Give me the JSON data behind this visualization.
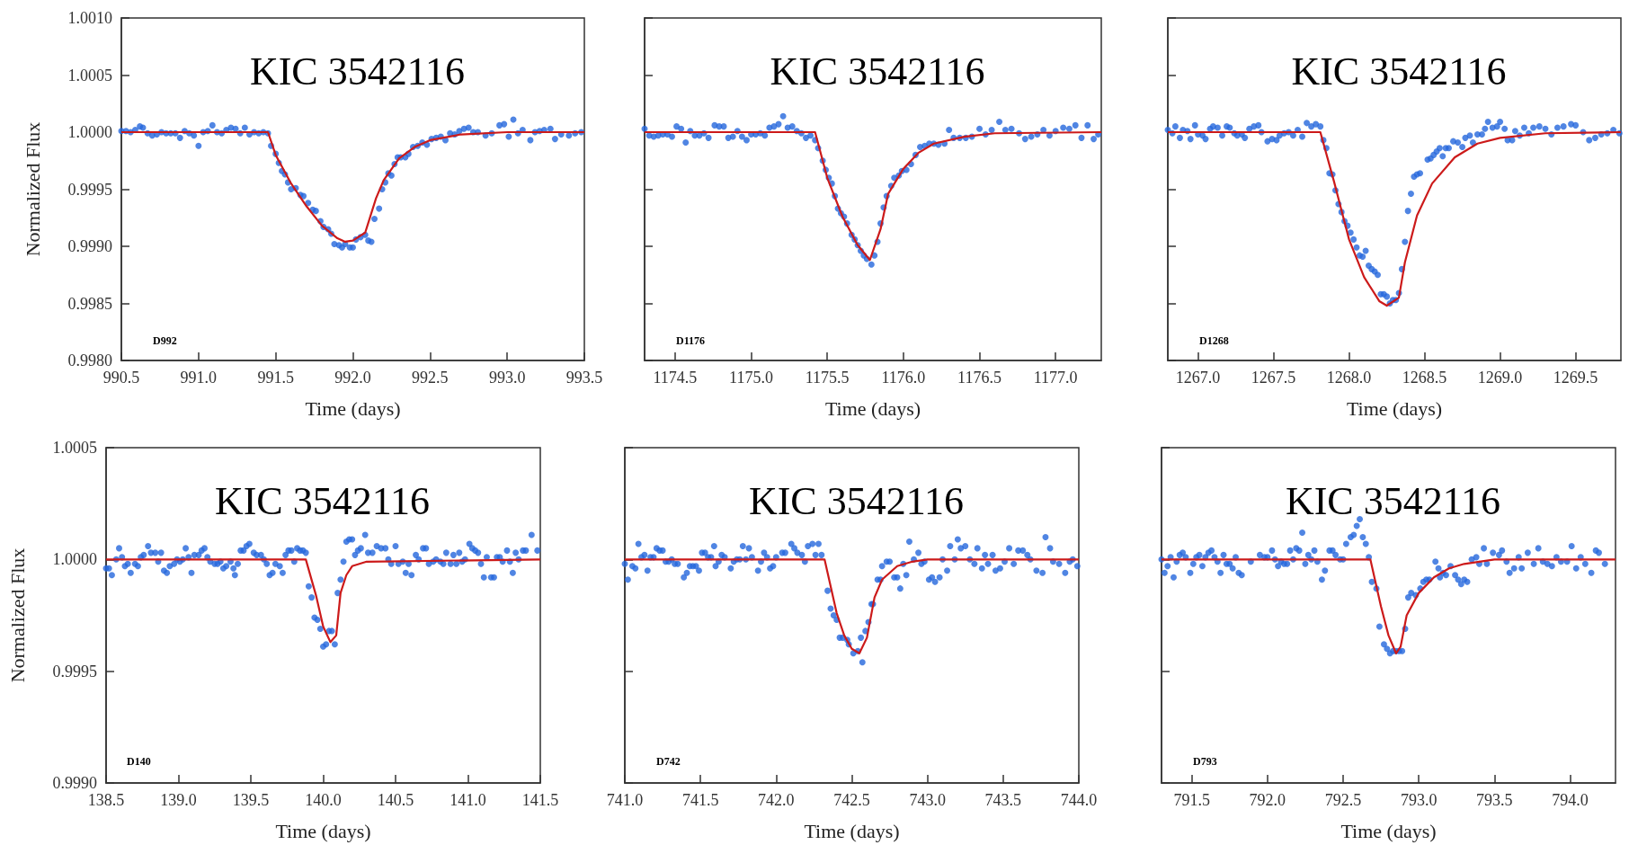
{
  "chart_data": [
    {
      "type": "scatter",
      "title": "KIC 3542116",
      "xlabel": "Time (days)",
      "ylabel": "Normalized Flux",
      "annotations": [
        "D992"
      ],
      "xlim": [
        990.5,
        993.5
      ],
      "xticks": [
        990.5,
        {
          "value": 991,
          "label": "991.0"
        },
        991.5,
        {
          "value": 992,
          "label": "992.0"
        },
        992.5,
        {
          "value": 993,
          "label": "993.0"
        },
        993.5
      ],
      "ylim": [
        0.998,
        1.001
      ],
      "yticks": [
        {
          "value": 0.998,
          "label": "0.9980"
        },
        0.9985,
        {
          "value": 0.999,
          "label": "0.9990"
        },
        0.9995,
        {
          "value": 1,
          "label": "1.0000"
        },
        1.0005,
        {
          "value": 1.001,
          "label": "1.0010"
        }
      ],
      "series": [
        {
          "type": "scatter",
          "marker": "circle",
          "color": "#2466dc",
          "x": [
            990.5,
            990.53,
            990.56,
            990.59,
            990.62,
            990.64,
            990.67,
            990.7,
            990.73,
            990.76,
            990.79,
            990.82,
            990.85,
            990.88,
            990.91,
            990.94,
            990.97,
            991.0,
            991.03,
            991.06,
            991.09,
            991.12,
            991.15,
            991.18,
            991.21,
            991.24,
            991.27,
            991.3,
            991.33,
            991.36,
            991.39,
            991.42,
            991.45,
            991.47,
            991.5,
            991.52,
            991.54,
            991.56,
            991.58,
            991.6,
            991.63,
            991.66,
            991.68,
            991.71,
            991.74,
            991.76,
            991.79,
            991.81,
            991.84,
            991.86,
            991.88,
            991.91,
            991.93,
            991.95,
            991.98,
            992.0,
            992.02,
            992.05,
            992.08,
            992.1,
            992.12,
            992.14,
            992.17,
            992.19,
            992.21,
            992.23,
            992.25,
            992.27,
            992.29,
            992.31,
            992.34,
            992.36,
            992.39,
            992.42,
            992.45,
            992.48,
            992.51,
            992.54,
            992.57,
            992.6,
            992.63,
            992.66,
            992.69,
            992.72,
            992.75,
            992.78,
            992.81,
            992.86,
            992.9,
            992.95,
            992.98,
            993.01,
            993.04,
            993.07,
            993.1,
            993.15,
            993.18,
            993.21,
            993.24,
            993.28,
            993.31,
            993.35,
            993.4,
            993.44,
            993.48
          ],
          "values": [
            1.00001,
            1.00001,
            1.0,
            1.00002,
            1.00005,
            1.00004,
            0.99999,
            0.99997,
            0.99998,
            1.0,
            0.99999,
            0.99999,
            0.99999,
            0.99995,
            1.00001,
            0.99999,
            0.99997,
            0.99988,
            1.0,
            1.00001,
            1.00006,
            1.0,
            0.99999,
            1.00002,
            1.00004,
            1.00003,
            0.99999,
            1.00004,
            0.99998,
            1.0,
            0.99999,
            1.0,
            0.99999,
            0.99988,
            0.99981,
            0.99973,
            0.99966,
            0.99963,
            0.99956,
            0.9995,
            0.99951,
            0.99945,
            0.99944,
            0.99938,
            0.99932,
            0.99931,
            0.99922,
            0.99917,
            0.99915,
            0.99911,
            0.99902,
            0.99901,
            0.99899,
            0.99902,
            0.99899,
            0.99899,
            0.99906,
            0.99908,
            0.9991,
            0.99905,
            0.99904,
            0.99924,
            0.99933,
            0.9995,
            0.99956,
            0.99964,
            0.99962,
            0.99972,
            0.99978,
            0.99978,
            0.99978,
            0.99981,
            0.99987,
            0.99988,
            0.99991,
            0.99989,
            0.99994,
            0.99995,
            0.99996,
            0.99993,
            0.99999,
            0.99998,
            1.00001,
            1.00003,
            1.00004,
            1.0,
            1.0,
            0.99997,
            0.99999,
            1.00006,
            1.00007,
            0.99996,
            1.00011,
            0.99999,
            1.00002,
            0.99993,
            1.0,
            1.00001,
            1.00002,
            1.00003,
            0.99994,
            0.99998,
            0.99997,
            0.99999,
            1.0
          ]
        },
        {
          "type": "line",
          "marker": "none",
          "color": "#cc1a1a",
          "x": [
            990.5,
            991.45,
            991.5,
            991.6,
            991.7,
            991.8,
            991.9,
            991.95,
            992.0,
            992.08,
            992.15,
            992.2,
            992.3,
            992.4,
            992.5,
            992.7,
            993.0,
            993.5
          ],
          "values": [
            1.0,
            1.0,
            0.9998,
            0.99955,
            0.99935,
            0.99918,
            0.99907,
            0.99904,
            0.99905,
            0.99912,
            0.99942,
            0.99958,
            0.99977,
            0.99987,
            0.99993,
            0.99998,
            1.0,
            1.0
          ]
        }
      ]
    },
    {
      "type": "scatter",
      "title": "KIC 3542116",
      "xlabel": "Time (days)",
      "annotations": [
        "D1176"
      ],
      "tick_labels": "x",
      "xlim": [
        1174.3,
        1177.3
      ],
      "xticks": [
        1174.5,
        {
          "value": 1175,
          "label": "1175.0"
        },
        1175.5,
        {
          "value": 1176,
          "label": "1176.0"
        },
        1176.5,
        {
          "value": 1177,
          "label": "1177.0"
        }
      ],
      "ylim": [
        0.998,
        1.001
      ],
      "yticks": [
        0.998,
        0.9985,
        0.999,
        0.9995,
        1,
        1.0005,
        1.001
      ],
      "series": [
        {
          "type": "scatter",
          "marker": "circle",
          "color": "#2466dc",
          "x": [
            1174.3,
            1174.33,
            1174.36,
            1174.39,
            1174.42,
            1174.45,
            1174.48,
            1174.51,
            1174.54,
            1174.57,
            1174.6,
            1174.63,
            1174.66,
            1174.69,
            1174.72,
            1174.76,
            1174.79,
            1174.82,
            1174.85,
            1174.88,
            1174.91,
            1174.94,
            1174.97,
            1175.0,
            1175.03,
            1175.06,
            1175.09,
            1175.12,
            1175.15,
            1175.18,
            1175.21,
            1175.24,
            1175.27,
            1175.3,
            1175.33,
            1175.36,
            1175.39,
            1175.42,
            1175.44,
            1175.47,
            1175.49,
            1175.51,
            1175.53,
            1175.55,
            1175.57,
            1175.59,
            1175.61,
            1175.63,
            1175.66,
            1175.68,
            1175.7,
            1175.72,
            1175.74,
            1175.76,
            1175.79,
            1175.81,
            1175.83,
            1175.85,
            1175.87,
            1175.89,
            1175.92,
            1175.94,
            1175.97,
            1175.99,
            1176.02,
            1176.05,
            1176.08,
            1176.11,
            1176.14,
            1176.17,
            1176.2,
            1176.23,
            1176.27,
            1176.3,
            1176.33,
            1176.37,
            1176.41,
            1176.45,
            1176.5,
            1176.54,
            1176.58,
            1176.63,
            1176.67,
            1176.71,
            1176.76,
            1176.8,
            1176.84,
            1176.88,
            1176.92,
            1176.96,
            1177.0,
            1177.05,
            1177.09,
            1177.13,
            1177.17,
            1177.21,
            1177.25,
            1177.28
          ],
          "values": [
            1.00003,
            0.99997,
            0.99996,
            0.99997,
            0.99998,
            0.99998,
            0.99996,
            1.00005,
            1.00003,
            0.99991,
            1.00001,
            0.99997,
            0.99997,
            0.99999,
            0.99995,
            1.00006,
            1.00005,
            1.00005,
            0.99995,
            0.99996,
            1.00001,
            0.99996,
            0.99993,
            0.99998,
            0.99998,
            0.99999,
            0.99997,
            1.00004,
            1.00005,
            1.00007,
            1.00014,
            1.00004,
            1.00005,
            1.00001,
            0.99999,
            0.99995,
            0.99997,
            0.99993,
            0.99986,
            0.99975,
            0.99967,
            0.9996,
            0.99955,
            0.99944,
            0.99933,
            0.99929,
            0.99926,
            0.9992,
            0.9991,
            0.99906,
            0.99901,
            0.99896,
            0.99892,
            0.99889,
            0.99884,
            0.99892,
            0.99904,
            0.9992,
            0.99934,
            0.99944,
            0.99953,
            0.9996,
            0.99962,
            0.99966,
            0.99967,
            0.99972,
            0.9998,
            0.99987,
            0.99988,
            0.9999,
            0.9999,
            0.99989,
            0.9999,
            1.00002,
            0.99995,
            0.99995,
            0.99995,
            0.99996,
            1.00003,
            0.99998,
            1.00002,
            1.00009,
            1.00002,
            1.00003,
            0.99999,
            0.99994,
            0.99996,
            0.99998,
            1.00002,
            0.99997,
            1.00001,
            1.00004,
            1.00003,
            1.00006,
            0.99995,
            1.00006,
            0.99994,
            0.99998
          ]
        },
        {
          "type": "line",
          "marker": "none",
          "color": "#cc1a1a",
          "x": [
            1174.3,
            1175.42,
            1175.5,
            1175.6,
            1175.7,
            1175.78,
            1175.85,
            1175.9,
            1176.0,
            1176.1,
            1176.2,
            1176.4,
            1176.6,
            1177.3
          ],
          "values": [
            1.0,
            1.0,
            0.9996,
            0.99926,
            0.99901,
            0.99888,
            0.99915,
            0.99946,
            0.99968,
            0.99982,
            0.9999,
            0.99996,
            0.99999,
            1.0
          ]
        }
      ]
    },
    {
      "type": "scatter",
      "title": "KIC 3542116",
      "xlabel": "Time (days)",
      "annotations": [
        "D1268"
      ],
      "tick_labels": "x",
      "xlim": [
        1266.8,
        1269.8
      ],
      "xticks": [
        {
          "value": 1267,
          "label": "1267.0"
        },
        1267.5,
        {
          "value": 1268,
          "label": "1268.0"
        },
        1268.5,
        {
          "value": 1269,
          "label": "1269.0"
        },
        1269.5
      ],
      "ylim": [
        0.998,
        1.001
      ],
      "yticks": [
        0.998,
        0.9985,
        0.999,
        0.9995,
        1,
        1.0005,
        1.001
      ],
      "series": [
        {
          "type": "scatter",
          "marker": "circle",
          "color": "#2466dc",
          "x": [
            1266.8,
            1266.83,
            1266.85,
            1266.88,
            1266.9,
            1266.93,
            1266.95,
            1266.98,
            1267.0,
            1267.03,
            1267.05,
            1267.08,
            1267.1,
            1267.13,
            1267.16,
            1267.19,
            1267.21,
            1267.24,
            1267.26,
            1267.29,
            1267.31,
            1267.34,
            1267.37,
            1267.4,
            1267.42,
            1267.46,
            1267.49,
            1267.52,
            1267.54,
            1267.57,
            1267.6,
            1267.63,
            1267.66,
            1267.69,
            1267.72,
            1267.75,
            1267.78,
            1267.81,
            1267.83,
            1267.85,
            1267.87,
            1267.89,
            1267.91,
            1267.93,
            1267.95,
            1267.97,
            1267.99,
            1268.01,
            1268.03,
            1268.05,
            1268.07,
            1268.09,
            1268.11,
            1268.13,
            1268.15,
            1268.17,
            1268.19,
            1268.21,
            1268.23,
            1268.25,
            1268.27,
            1268.29,
            1268.31,
            1268.33,
            1268.35,
            1268.37,
            1268.39,
            1268.41,
            1268.43,
            1268.45,
            1268.47,
            1268.52,
            1268.54,
            1268.56,
            1268.58,
            1268.6,
            1268.62,
            1268.64,
            1268.66,
            1268.69,
            1268.72,
            1268.75,
            1268.77,
            1268.8,
            1268.82,
            1268.85,
            1268.88,
            1268.9,
            1268.92,
            1268.95,
            1268.98,
            1269.0,
            1269.03,
            1269.05,
            1269.08,
            1269.1,
            1269.13,
            1269.16,
            1269.19,
            1269.22,
            1269.26,
            1269.3,
            1269.34,
            1269.38,
            1269.42,
            1269.47,
            1269.5,
            1269.55,
            1269.59,
            1269.63,
            1269.67,
            1269.71,
            1269.75,
            1269.79
          ],
          "values": [
            1.00002,
            0.99999,
            1.00005,
            0.99995,
            1.00002,
            1.00001,
            0.99994,
            1.00006,
            0.99998,
            0.99997,
            0.99994,
            1.00003,
            1.00005,
            1.00004,
            0.99997,
            1.00005,
            1.00004,
            0.99999,
            0.99997,
            0.99998,
            0.99995,
            1.00003,
            1.00005,
            1.00006,
            1.0,
            0.99992,
            0.99994,
            0.99993,
            0.99997,
            0.99999,
            1.0,
            0.99997,
            1.00002,
            0.99996,
            1.00008,
            1.00005,
            1.00007,
            1.00005,
            0.99993,
            0.99986,
            0.99964,
            0.99963,
            0.99949,
            0.99937,
            0.9993,
            0.99922,
            0.99918,
            0.99912,
            0.99906,
            0.99899,
            0.99892,
            0.99891,
            0.99896,
            0.99883,
            0.9988,
            0.99878,
            0.99875,
            0.99858,
            0.99858,
            0.99856,
            0.9985,
            0.99853,
            0.99853,
            0.99859,
            0.9988,
            0.99904,
            0.99931,
            0.99946,
            0.99961,
            0.99963,
            0.99964,
            0.99976,
            0.99977,
            0.9998,
            0.99983,
            0.99986,
            0.99979,
            0.99986,
            0.99986,
            0.99992,
            0.99991,
            0.99987,
            0.99995,
            0.99997,
            0.99991,
            0.99998,
            0.99998,
            1.00003,
            1.00009,
            1.00004,
            1.00005,
            1.00009,
            1.00003,
            0.99993,
            0.99993,
            1.00001,
            0.99997,
            1.00004,
            0.99999,
            1.00004,
            1.00005,
            1.00003,
            0.99998,
            1.00004,
            1.00005,
            1.00007,
            1.00006,
            1.0,
            0.99993,
            0.99995,
            0.99998,
            0.99999,
            1.00002,
            0.99999
          ]
        },
        {
          "type": "line",
          "marker": "none",
          "color": "#cc1a1a",
          "x": [
            1266.8,
            1267.81,
            1267.9,
            1268.0,
            1268.1,
            1268.2,
            1268.25,
            1268.33,
            1268.37,
            1268.45,
            1268.55,
            1268.7,
            1268.85,
            1269.0,
            1269.3,
            1269.8
          ],
          "values": [
            1.0,
            1.0,
            0.99957,
            0.99906,
            0.99873,
            0.99852,
            0.99848,
            0.99855,
            0.99886,
            0.99927,
            0.99955,
            0.99978,
            0.9999,
            0.99995,
            0.99999,
            1.0
          ]
        }
      ]
    },
    {
      "type": "scatter",
      "title": "KIC 3542116",
      "xlabel": "Time (days)",
      "ylabel": "Normalized Flux",
      "annotations": [
        "D140"
      ],
      "xlim": [
        138.5,
        141.5
      ],
      "xticks": [
        138.5,
        {
          "value": 139,
          "label": "139.0"
        },
        139.5,
        {
          "value": 140,
          "label": "140.0"
        },
        140.5,
        {
          "value": 141,
          "label": "141.0"
        },
        141.5
      ],
      "ylim": [
        0.999,
        1.0005
      ],
      "yticks": [
        {
          "value": 0.999,
          "label": "0.9990"
        },
        0.9995,
        {
          "value": 1,
          "label": "1.0000"
        },
        1.0005
      ],
      "series": [
        {
          "type": "scatter",
          "marker": "circle",
          "color": "#2466dc",
          "x": [
            138.5,
            138.52,
            138.54,
            138.57,
            138.59,
            138.61,
            138.63,
            138.65,
            138.67,
            138.7,
            138.72,
            138.74,
            138.76,
            138.79,
            138.81,
            138.84,
            138.86,
            138.88,
            138.9,
            138.92,
            138.94,
            138.97,
            138.99,
            139.01,
            139.03,
            139.05,
            139.07,
            139.09,
            139.11,
            139.14,
            139.16,
            139.18,
            139.2,
            139.22,
            139.25,
            139.27,
            139.29,
            139.31,
            139.33,
            139.36,
            139.38,
            139.39,
            139.41,
            139.43,
            139.45,
            139.47,
            139.49,
            139.52,
            139.54,
            139.57,
            139.59,
            139.61,
            139.63,
            139.65,
            139.67,
            139.7,
            139.72,
            139.74,
            139.76,
            139.78,
            139.8,
            139.82,
            139.84,
            139.86,
            139.88,
            139.9,
            139.92,
            139.94,
            139.96,
            139.98,
            140.0,
            140.02,
            140.04,
            140.06,
            140.08,
            140.1,
            140.12,
            140.14,
            140.16,
            140.18,
            140.2,
            140.22,
            140.24,
            140.26,
            140.29,
            140.31,
            140.34,
            140.37,
            140.4,
            140.43,
            140.45,
            140.47,
            140.5,
            140.52,
            140.55,
            140.57,
            140.59,
            140.61,
            140.64,
            140.66,
            140.69,
            140.71,
            140.73,
            140.76,
            140.78,
            140.81,
            140.83,
            140.85,
            140.88,
            140.9,
            140.92,
            140.94,
            140.96,
            140.98,
            141.01,
            141.03,
            141.05,
            141.07,
            141.09,
            141.11,
            141.13,
            141.16,
            141.18,
            141.2,
            141.22,
            141.24,
            141.27,
            141.29,
            141.31,
            141.33,
            141.35,
            141.38,
            141.4,
            141.44,
            141.48
          ],
          "values": [
            0.99996,
            0.99996,
            0.99993,
            1.0,
            1.00005,
            1.00001,
            0.99997,
            0.99998,
            0.99994,
            0.99998,
            0.99997,
            1.00001,
            1.00002,
            1.00006,
            1.00003,
            1.00003,
            0.99999,
            1.00003,
            0.99995,
            0.99994,
            0.99997,
            0.99998,
            1.0,
            0.99999,
            1.0,
            1.00005,
            1.00001,
            0.99994,
            1.00002,
            1.00002,
            1.00004,
            1.00005,
            1.00001,
            0.99999,
            0.99998,
            0.99998,
            0.99999,
            0.99996,
            0.99997,
            0.99999,
            0.99996,
            0.99993,
            0.99998,
            1.00004,
            1.00004,
            1.00006,
            1.00007,
            1.00003,
            1.00002,
            1.00002,
            1.0,
            0.99998,
            0.99993,
            0.99994,
            0.99998,
            0.99997,
            0.99994,
            1.00002,
            1.00004,
            1.00004,
            0.99999,
            1.00005,
            1.00004,
            1.00004,
            1.00003,
            0.99988,
            0.99983,
            0.99974,
            0.99973,
            0.99969,
            0.99961,
            0.99962,
            0.99968,
            0.99968,
            0.99962,
            0.99985,
            0.99991,
            0.99999,
            1.00008,
            1.00009,
            1.00009,
            1.00002,
            1.00004,
            1.00005,
            1.00011,
            1.00003,
            1.00003,
            1.00006,
            1.00005,
            1.00005,
            1.0,
            0.99998,
            1.00006,
            0.99998,
            0.99999,
            0.99994,
            0.99998,
            0.99993,
            1.00002,
            1.0,
            1.00005,
            1.00005,
            0.99998,
            0.99999,
            1.0,
            0.99999,
            0.99998,
            1.00003,
            0.99998,
            1.00002,
            0.99998,
            1.00003,
            0.99999,
            1.0,
            1.00007,
            1.00005,
            1.00004,
            1.00003,
            0.99998,
            0.99992,
            1.00001,
            0.99992,
            0.99992,
            1.00001,
            1.00001,
            0.99999,
            1.00004,
            0.99999,
            0.99994,
            1.00003,
            1.0,
            1.00004,
            1.00004,
            1.00011,
            1.00004
          ]
        },
        {
          "type": "line",
          "marker": "none",
          "color": "#cc1a1a",
          "x": [
            138.5,
            139.88,
            139.95,
            140.0,
            140.05,
            140.09,
            140.12,
            140.16,
            140.2,
            140.3,
            141.5
          ],
          "values": [
            1.0,
            1.0,
            0.99984,
            0.9997,
            0.99963,
            0.99966,
            0.99985,
            0.99993,
            0.99997,
            0.99999,
            1.0
          ]
        }
      ]
    },
    {
      "type": "scatter",
      "title": "KIC 3542116",
      "xlabel": "Time (days)",
      "annotations": [
        "D742"
      ],
      "tick_labels": "x",
      "xlim": [
        741,
        744
      ],
      "xticks": [
        {
          "value": 741,
          "label": "741.0"
        },
        741.5,
        {
          "value": 742,
          "label": "742.0"
        },
        742.5,
        {
          "value": 743,
          "label": "743.0"
        },
        743.5,
        {
          "value": 744,
          "label": "744.0"
        }
      ],
      "ylim": [
        0.999,
        1.0005
      ],
      "yticks": [
        0.999,
        0.9995,
        1,
        1.0005
      ],
      "series": [
        {
          "type": "scatter",
          "marker": "circle",
          "color": "#2466dc",
          "x": [
            741.0,
            741.02,
            741.05,
            741.07,
            741.09,
            741.11,
            741.13,
            741.15,
            741.17,
            741.19,
            741.21,
            741.23,
            741.25,
            741.27,
            741.29,
            741.31,
            741.33,
            741.35,
            741.39,
            741.41,
            741.43,
            741.45,
            741.47,
            741.49,
            741.51,
            741.53,
            741.55,
            741.57,
            741.59,
            741.6,
            741.62,
            741.64,
            741.66,
            741.7,
            741.72,
            741.74,
            741.76,
            741.78,
            741.8,
            741.82,
            741.84,
            741.88,
            741.9,
            741.92,
            741.94,
            741.96,
            741.98,
            742.0,
            742.04,
            742.06,
            742.1,
            742.12,
            742.14,
            742.17,
            742.19,
            742.21,
            742.24,
            742.26,
            742.28,
            742.3,
            742.34,
            742.36,
            742.38,
            742.4,
            742.42,
            742.44,
            742.47,
            742.48,
            742.51,
            742.54,
            742.56,
            742.57,
            742.59,
            742.61,
            742.63,
            742.64,
            742.67,
            742.69,
            742.7,
            742.73,
            742.75,
            742.78,
            742.8,
            742.82,
            742.84,
            742.86,
            742.88,
            742.91,
            742.94,
            742.96,
            742.98,
            743.01,
            743.03,
            743.05,
            743.08,
            743.1,
            743.13,
            743.15,
            743.18,
            743.2,
            743.22,
            743.25,
            743.28,
            743.31,
            743.33,
            743.36,
            743.38,
            743.4,
            743.43,
            743.45,
            743.48,
            743.51,
            743.54,
            743.57,
            743.6,
            743.63,
            743.66,
            743.68,
            743.72,
            743.76,
            743.78,
            743.81,
            743.83,
            743.87,
            743.91,
            743.94,
            743.96,
            743.99
          ],
          "values": [
            0.99998,
            0.99991,
            0.99997,
            0.99996,
            1.00007,
            1.00001,
            1.00002,
            0.99995,
            1.00001,
            1.00001,
            1.00005,
            1.00004,
            1.00004,
            0.99999,
            0.99999,
            1.0,
            0.99998,
            0.99998,
            0.99992,
            0.99994,
            0.99997,
            0.99997,
            0.99997,
            0.99995,
            1.00003,
            1.00003,
            1.00001,
            1.00001,
            1.00006,
            0.99997,
            0.99999,
            1.00002,
            1.00001,
            0.99996,
            0.99999,
            1.0,
            1.0,
            1.00006,
            1.0,
            1.00005,
            1.00001,
            0.99995,
            0.99999,
            1.00003,
            1.00001,
            0.99996,
            0.99997,
            1.00001,
            1.00003,
            1.00003,
            1.00007,
            1.00005,
            1.00003,
            1.00002,
            0.99999,
            1.00006,
            1.00007,
            1.00002,
            1.00007,
            1.00002,
            0.99986,
            0.99978,
            0.99975,
            0.99973,
            0.99965,
            0.99965,
            0.99964,
            0.99962,
            0.99958,
            0.99959,
            0.99965,
            0.99954,
            0.99968,
            0.99972,
            0.9998,
            0.9998,
            0.99991,
            0.99991,
            0.99997,
            0.99999,
            0.99999,
            0.99992,
            0.99992,
            0.99987,
            0.99998,
            0.99993,
            1.00008,
            1.0,
            1.00003,
            0.99998,
            0.99999,
            0.99991,
            0.99992,
            0.9999,
            0.99992,
            1.0,
            0.99995,
            1.00006,
            1.0,
            1.00009,
            1.00005,
            1.00006,
            1.0,
            0.99998,
            1.00005,
            0.99996,
            1.00002,
            0.99998,
            1.00002,
            0.99995,
            0.99996,
            0.99999,
            1.00005,
            0.99998,
            1.00004,
            1.00004,
            1.00002,
            1.0,
            0.99995,
            0.99994,
            1.0001,
            1.00005,
            0.99999,
            0.99998,
            0.99994,
            0.99999,
            1.0,
            0.99997
          ]
        },
        {
          "type": "line",
          "marker": "none",
          "color": "#cc1a1a",
          "x": [
            741,
            742.32,
            742.4,
            742.45,
            742.5,
            742.55,
            742.6,
            742.65,
            742.7,
            742.8,
            742.9,
            743.0,
            744
          ],
          "values": [
            1.0,
            1.0,
            0.99976,
            0.99966,
            0.9996,
            0.99958,
            0.99965,
            0.99983,
            0.99991,
            0.99997,
            0.99999,
            1.0,
            1.0
          ]
        }
      ]
    },
    {
      "type": "scatter",
      "title": "KIC 3542116",
      "xlabel": "Time (days)",
      "annotations": [
        "D793"
      ],
      "tick_labels": "x",
      "xlim": [
        791.3,
        794.3
      ],
      "xticks": [
        791.5,
        {
          "value": 792,
          "label": "792.0"
        },
        792.5,
        {
          "value": 793,
          "label": "793.0"
        },
        793.5,
        {
          "value": 794,
          "label": "794.0"
        }
      ],
      "ylim": [
        0.999,
        1.0005
      ],
      "yticks": [
        0.999,
        0.9995,
        1,
        1.0005
      ],
      "series": [
        {
          "type": "scatter",
          "marker": "circle",
          "color": "#2466dc",
          "x": [
            791.3,
            791.32,
            791.34,
            791.36,
            791.38,
            791.4,
            791.42,
            791.44,
            791.46,
            791.49,
            791.51,
            791.53,
            791.55,
            791.57,
            791.59,
            791.61,
            791.63,
            791.65,
            791.67,
            791.69,
            791.71,
            791.73,
            791.75,
            791.77,
            791.79,
            791.81,
            791.83,
            791.89,
            791.95,
            791.98,
            792.0,
            792.03,
            792.05,
            792.07,
            792.09,
            792.11,
            792.13,
            792.15,
            792.17,
            792.19,
            792.21,
            792.23,
            792.25,
            792.27,
            792.29,
            792.31,
            792.33,
            792.36,
            792.38,
            792.41,
            792.43,
            792.45,
            792.48,
            792.5,
            792.52,
            792.55,
            792.57,
            792.59,
            792.61,
            792.63,
            792.65,
            792.67,
            792.69,
            792.72,
            792.74,
            792.77,
            792.79,
            792.81,
            792.83,
            792.85,
            792.87,
            792.89,
            792.91,
            792.93,
            792.95,
            792.98,
            793.01,
            793.03,
            793.05,
            793.07,
            793.11,
            793.13,
            793.14,
            793.16,
            793.18,
            793.21,
            793.24,
            793.26,
            793.28,
            793.3,
            793.32,
            793.35,
            793.38,
            793.4,
            793.43,
            793.45,
            793.49,
            793.53,
            793.55,
            793.58,
            793.6,
            793.63,
            793.66,
            793.68,
            793.72,
            793.76,
            793.79,
            793.82,
            793.85,
            793.88,
            793.91,
            793.94,
            793.98,
            794.01,
            794.04,
            794.07,
            794.1,
            794.14,
            794.17,
            794.19,
            794.23
          ],
          "values": [
            1.0,
            0.99994,
            0.99997,
            1.00001,
            0.99992,
            0.99999,
            1.00002,
            1.00003,
            1.00001,
            0.99994,
            0.99998,
            1.00001,
            1.00002,
            0.99997,
            1.00001,
            1.00003,
            1.00004,
            1.00001,
            0.99999,
            0.99994,
            1.00002,
            0.99998,
            0.99998,
            0.99996,
            1.00001,
            0.99994,
            0.99993,
            0.99999,
            1.00002,
            1.00001,
            1.00001,
            1.00004,
            1.0,
            0.99997,
            0.99999,
            0.99998,
            0.99998,
            1.00004,
            1.0,
            1.00005,
            1.00004,
            1.00012,
            0.99998,
            1.00002,
            1.0,
            1.00004,
            0.99999,
            0.99991,
            0.99995,
            1.00004,
            1.00004,
            1.00002,
            1.0,
            1.0,
            1.00007,
            1.0001,
            1.00011,
            1.00015,
            1.00018,
            1.0001,
            1.00007,
            1.00001,
            0.9999,
            0.99987,
            0.9997,
            0.99962,
            0.9996,
            0.99958,
            0.99959,
            0.99959,
            0.99959,
            0.99959,
            0.99969,
            0.99983,
            0.99985,
            0.99984,
            0.99987,
            0.9999,
            0.99991,
            0.99991,
            0.99999,
            0.99996,
            0.99992,
            0.99994,
            0.99993,
            0.99997,
            0.99993,
            0.99991,
            0.99989,
            0.99991,
            0.9999,
            1.0,
            1.00001,
            0.99998,
            1.00005,
            0.99998,
            1.00003,
            1.00002,
            1.00004,
            0.99999,
            0.99994,
            0.99996,
            1.00001,
            0.99996,
            1.00003,
            0.99998,
            1.00005,
            0.99999,
            0.99998,
            0.99997,
            1.00001,
            0.99999,
            0.99999,
            1.00006,
            0.99996,
            1.00001,
            0.99998,
            0.99994,
            1.00004,
            1.00003,
            0.99998
          ]
        },
        {
          "type": "line",
          "marker": "none",
          "color": "#cc1a1a",
          "x": [
            791.3,
            792.68,
            792.75,
            792.8,
            792.85,
            792.88,
            792.92,
            793.0,
            793.1,
            793.2,
            793.3,
            793.5,
            794.3
          ],
          "values": [
            1.0,
            1.0,
            0.99979,
            0.99966,
            0.99958,
            0.99961,
            0.99975,
            0.99985,
            0.99992,
            0.99996,
            0.99998,
            1.0,
            1.0
          ]
        }
      ]
    }
  ]
}
